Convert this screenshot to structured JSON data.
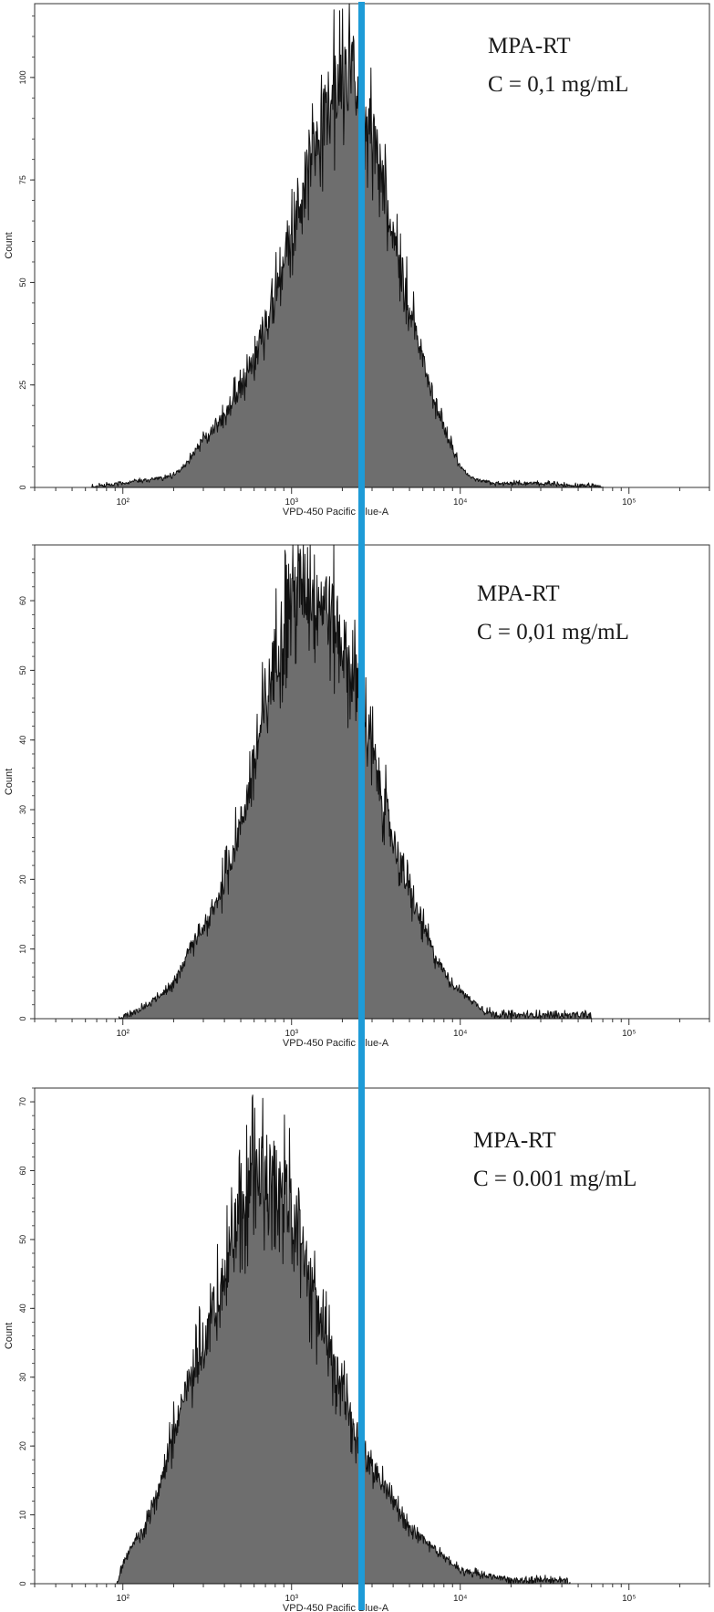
{
  "colors": {
    "histogram_fill": "#6e6e6e",
    "histogram_outline": "#111111",
    "marker_line": "#1e9bd7",
    "frame": "#333333"
  },
  "marker_line": {
    "x_value": 2600,
    "label": ""
  },
  "chart_data": [
    {
      "type": "area",
      "subtype": "histogram",
      "xlabel": "VPD-450 Pacific Blue-A",
      "ylabel": "Count",
      "x_scale": "log",
      "xlim": [
        30,
        300000
      ],
      "ylim": [
        0,
        118
      ],
      "x_ticks": [
        {
          "value": 100,
          "label": "10²"
        },
        {
          "value": 1000,
          "label": "10³"
        },
        {
          "value": 10000,
          "label": "10⁴"
        },
        {
          "value": 100000,
          "label": "10⁵"
        }
      ],
      "y_ticks": [
        0,
        25,
        50,
        75,
        100
      ],
      "annotation": [
        "MPA-RT",
        "C = 0,1 mg/mL"
      ],
      "series": [
        {
          "x": [
            65,
            80,
            100,
            120,
            150,
            180,
            200,
            230,
            260,
            300,
            350,
            400,
            450,
            500,
            560,
            630,
            700,
            800,
            900,
            1000,
            1120,
            1260,
            1410,
            1580,
            1780,
            2000,
            2240,
            2510,
            2820,
            3160,
            3550,
            3980,
            4470,
            5010,
            5620,
            6310,
            7080,
            7940,
            8910,
            10000,
            11220,
            12590,
            14130,
            15850,
            17780,
            19950,
            25120,
            31620,
            39810,
            50120,
            63100,
            70000
          ],
          "y": [
            0,
            0.5,
            1,
            1.5,
            2,
            2.5,
            3,
            5,
            8,
            12,
            15,
            17,
            22,
            24,
            28,
            33,
            40,
            47,
            55,
            62,
            70,
            77,
            85,
            91,
            97,
            100,
            102,
            98,
            92,
            82,
            73,
            63,
            53,
            44,
            36,
            28,
            21,
            15,
            10,
            5,
            3,
            2,
            1.5,
            1,
            1,
            1,
            1,
            1,
            0.5,
            0.5,
            0.5,
            0
          ]
        }
      ]
    },
    {
      "type": "area",
      "subtype": "histogram",
      "xlabel": "VPD-450 Pacific Blue-A",
      "ylabel": "Count",
      "x_scale": "log",
      "xlim": [
        30,
        300000
      ],
      "ylim": [
        0,
        68
      ],
      "x_ticks": [
        {
          "value": 100,
          "label": "10²"
        },
        {
          "value": 1000,
          "label": "10³"
        },
        {
          "value": 10000,
          "label": "10⁴"
        },
        {
          "value": 100000,
          "label": "10⁵"
        }
      ],
      "y_ticks": [
        0,
        10,
        20,
        30,
        40,
        50,
        60
      ],
      "annotation": [
        "MPA-RT",
        "C = 0,01 mg/mL"
      ],
      "series": [
        {
          "x": [
            95,
            105,
            120,
            140,
            160,
            180,
            200,
            230,
            260,
            300,
            350,
            400,
            450,
            500,
            560,
            630,
            700,
            800,
            900,
            1000,
            1120,
            1260,
            1410,
            1580,
            1780,
            2000,
            2240,
            2510,
            2820,
            3160,
            3550,
            3980,
            4470,
            5010,
            5620,
            6310,
            7080,
            7940,
            8910,
            10000,
            11220,
            12590,
            14130,
            17780,
            22390,
            28180,
            35480,
            44670,
            56230,
            60000
          ],
          "y": [
            0,
            0.5,
            1,
            2,
            3,
            4,
            5,
            8,
            11,
            13,
            16,
            20,
            24,
            28,
            33,
            39,
            45,
            52,
            57,
            61,
            62,
            62,
            61,
            60,
            57,
            54,
            50,
            46,
            41,
            36,
            31,
            26,
            22,
            18,
            15,
            12,
            9,
            7,
            5,
            4,
            3,
            2,
            1,
            0.5,
            0.5,
            0.5,
            0.5,
            0.5,
            0.5,
            0
          ]
        }
      ]
    },
    {
      "type": "area",
      "subtype": "histogram",
      "xlabel": "VPD-450 Pacific Blue-A",
      "ylabel": "Count",
      "x_scale": "log",
      "xlim": [
        30,
        300000
      ],
      "ylim": [
        0,
        72
      ],
      "x_ticks": [
        {
          "value": 100,
          "label": "10²"
        },
        {
          "value": 1000,
          "label": "10³"
        },
        {
          "value": 10000,
          "label": "10⁴"
        },
        {
          "value": 100000,
          "label": "10⁵"
        }
      ],
      "y_ticks": [
        0,
        10,
        20,
        30,
        40,
        50,
        60,
        70
      ],
      "annotation": [
        "MPA-RT",
        "C = 0.001 mg/mL"
      ],
      "series": [
        {
          "x": [
            92,
            100,
            110,
            125,
            140,
            160,
            180,
            200,
            230,
            260,
            300,
            350,
            400,
            450,
            500,
            560,
            630,
            700,
            790,
            890,
            1000,
            1120,
            1260,
            1410,
            1580,
            1780,
            2000,
            2240,
            2510,
            2820,
            3160,
            3550,
            3980,
            4470,
            5010,
            5620,
            6310,
            7080,
            7940,
            8910,
            10000,
            12590,
            15850,
            19950,
            25120,
            31620,
            39810,
            44670
          ],
          "y": [
            0,
            3,
            5,
            7,
            9,
            13,
            18,
            22,
            27,
            31,
            35,
            40,
            45,
            50,
            55,
            58,
            60,
            61,
            60,
            58,
            54,
            50,
            45,
            40,
            36,
            32,
            28,
            24,
            21,
            18,
            16,
            14,
            12,
            10,
            8,
            7,
            6,
            5,
            4,
            3,
            2,
            1.5,
            1,
            0.5,
            0.5,
            0.5,
            0.5,
            0
          ]
        }
      ]
    }
  ]
}
